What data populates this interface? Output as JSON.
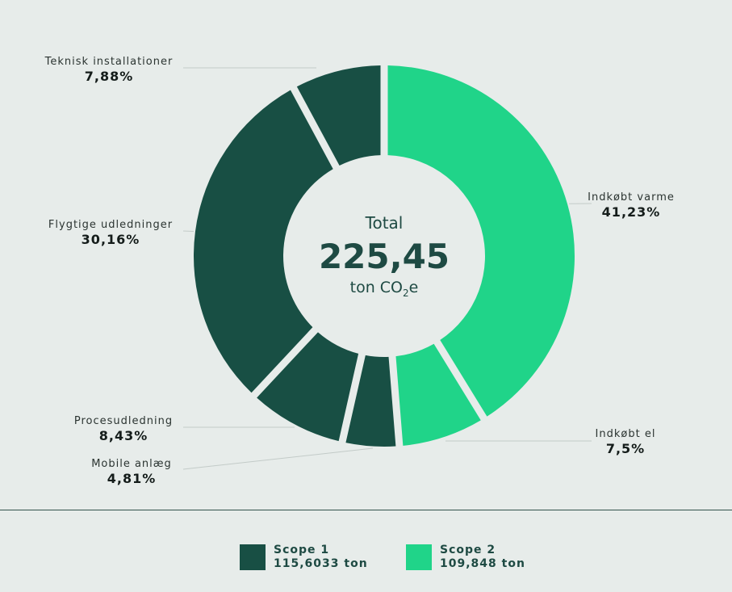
{
  "chart_data": {
    "type": "pie",
    "subtype": "donut",
    "center": {
      "label": "Total",
      "value": "225,45",
      "unit_prefix": "ton CO",
      "unit_sub": "2",
      "unit_suffix": "e"
    },
    "slices": [
      {
        "name": "Indkøbt varme",
        "value": 41.23,
        "label": "41,23%",
        "scope": "Scope 2",
        "color": "#20d489"
      },
      {
        "name": "Indkøbt el",
        "value": 7.5,
        "label": "7,5%",
        "scope": "Scope 2",
        "color": "#20d489"
      },
      {
        "name": "Mobile anlæg",
        "value": 4.81,
        "label": "4,81%",
        "scope": "Scope 1",
        "color": "#184f44"
      },
      {
        "name": "Procesudledning",
        "value": 8.43,
        "label": "8,43%",
        "scope": "Scope 1",
        "color": "#184f44"
      },
      {
        "name": "Flygtige udledninger",
        "value": 30.16,
        "label": "30,16%",
        "scope": "Scope 1",
        "color": "#184f44"
      },
      {
        "name": "Teknisk installationer",
        "value": 7.88,
        "label": "7,88%",
        "scope": "Scope 1",
        "color": "#184f44"
      }
    ],
    "legend": [
      {
        "name": "Scope 1",
        "value": "115,6033 ton",
        "color": "#184f44"
      },
      {
        "name": "Scope 2",
        "value": "109,848 ton",
        "color": "#20d489"
      }
    ],
    "legend_position": "bottom"
  }
}
